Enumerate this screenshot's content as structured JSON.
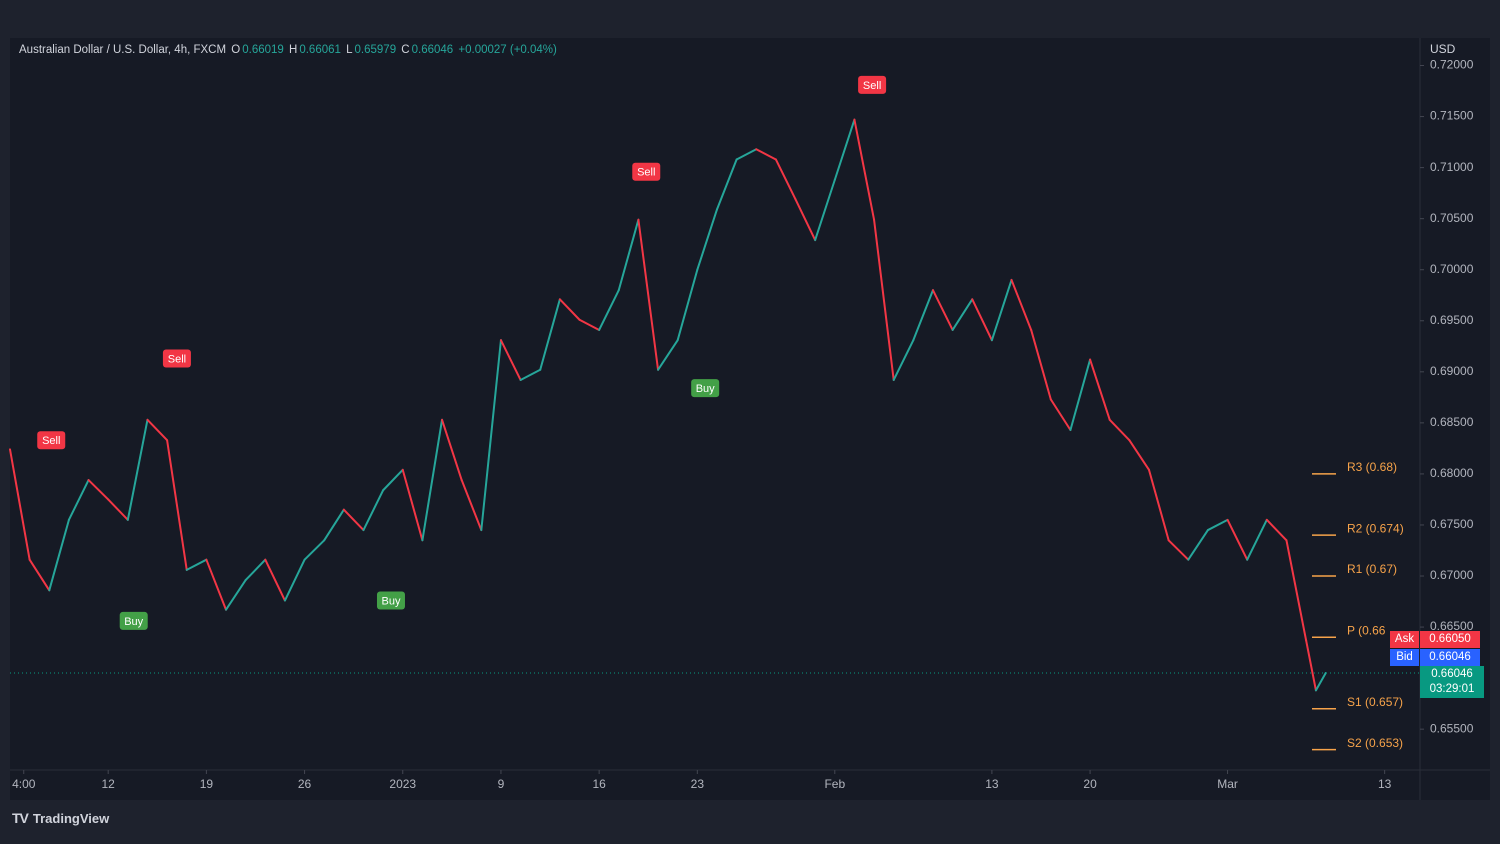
{
  "header": {
    "symbol": "Australian Dollar / U.S. Dollar, 4h, FXCM",
    "open_label": "O",
    "open": "0.66019",
    "high_label": "H",
    "high": "0.66061",
    "low_label": "L",
    "low": "0.65979",
    "close_label": "C",
    "close": "0.66046",
    "change": "+0.00027 (+0.04%)"
  },
  "chart_data": {
    "type": "line",
    "currency": "USD",
    "up_color": "#26a69a",
    "down_color": "#f23645",
    "x": [
      0,
      1,
      2,
      3,
      4,
      5,
      6,
      7,
      8,
      9,
      10,
      11,
      12,
      13,
      14,
      15,
      16,
      17,
      18,
      19,
      20,
      21,
      22,
      23,
      24,
      25,
      26,
      27,
      28,
      29,
      30,
      31,
      32,
      33,
      34,
      35,
      36,
      37,
      38,
      39,
      40,
      41,
      42,
      43,
      44,
      45,
      46,
      47,
      48,
      49,
      50,
      51,
      52,
      53,
      54,
      55,
      56,
      57,
      58,
      59,
      60,
      61,
      62,
      63,
      64,
      65,
      66,
      66.5,
      67
    ],
    "values": [
      0.6824,
      0.6716,
      0.6686,
      0.6755,
      0.6794,
      0.6775,
      0.6755,
      0.6853,
      0.6833,
      0.6706,
      0.6716,
      0.6667,
      0.6696,
      0.6716,
      0.6676,
      0.6716,
      0.6735,
      0.6765,
      0.6745,
      0.6784,
      0.6804,
      0.6735,
      0.6853,
      0.6794,
      0.6745,
      0.6931,
      0.6892,
      0.6902,
      0.6971,
      0.6951,
      0.6941,
      0.698,
      0.7049,
      0.6902,
      0.6931,
      0.7,
      0.7059,
      0.7108,
      0.7118,
      0.7108,
      0.7069,
      0.7029,
      0.7088,
      0.7147,
      0.7049,
      0.6892,
      0.6931,
      0.698,
      0.6941,
      0.6971,
      0.6931,
      0.699,
      0.6941,
      0.6873,
      0.6843,
      0.6912,
      0.6853,
      0.6833,
      0.6804,
      0.6735,
      0.6716,
      0.6745,
      0.6755,
      0.6716,
      0.6755,
      0.6735,
      0.6637,
      0.6588,
      0.6605
    ],
    "xlim": [
      0,
      71.8
    ],
    "ylim": [
      0.651,
      0.7225
    ],
    "xticks": [
      {
        "value": 0.7,
        "label": "4:00"
      },
      {
        "value": 5,
        "label": "12"
      },
      {
        "value": 10,
        "label": "19"
      },
      {
        "value": 15,
        "label": "26"
      },
      {
        "value": 20,
        "label": "2023"
      },
      {
        "value": 25,
        "label": "9"
      },
      {
        "value": 30,
        "label": "16"
      },
      {
        "value": 35,
        "label": "23"
      },
      {
        "value": 42,
        "label": "Feb"
      },
      {
        "value": 50,
        "label": "13"
      },
      {
        "value": 55,
        "label": "20"
      },
      {
        "value": 62,
        "label": "Mar"
      },
      {
        "value": 70,
        "label": "13"
      }
    ],
    "yticks": [
      {
        "value": 0.72,
        "label": "0.72000"
      },
      {
        "value": 0.715,
        "label": "0.71500"
      },
      {
        "value": 0.71,
        "label": "0.71000"
      },
      {
        "value": 0.705,
        "label": "0.70500"
      },
      {
        "value": 0.7,
        "label": "0.70000"
      },
      {
        "value": 0.695,
        "label": "0.69500"
      },
      {
        "value": 0.69,
        "label": "0.69000"
      },
      {
        "value": 0.685,
        "label": "0.68500"
      },
      {
        "value": 0.68,
        "label": "0.68000"
      },
      {
        "value": 0.675,
        "label": "0.67500"
      },
      {
        "value": 0.67,
        "label": "0.67000"
      },
      {
        "value": 0.665,
        "label": "0.66500"
      },
      {
        "value": 0.655,
        "label": "0.65500"
      }
    ],
    "signals": [
      {
        "label": "Sell",
        "x": 2.1,
        "y": 0.6833
      },
      {
        "label": "Sell",
        "x": 8.5,
        "y": 0.6913
      },
      {
        "label": "Sell",
        "x": 32.4,
        "y": 0.7096
      },
      {
        "label": "Sell",
        "x": 43.9,
        "y": 0.7181
      },
      {
        "label": "Buy",
        "x": 6.3,
        "y": 0.6656
      },
      {
        "label": "Buy",
        "x": 19.4,
        "y": 0.6676
      },
      {
        "label": "Buy",
        "x": 35.4,
        "y": 0.6884
      }
    ],
    "pivots": [
      {
        "label": "R3 (0.68)",
        "value": 0.68
      },
      {
        "label": "R2 (0.674)",
        "value": 0.674
      },
      {
        "label": "R1 (0.67)",
        "value": 0.67
      },
      {
        "label": "P (0.66",
        "value": 0.664
      },
      {
        "label": "S1 (0.657)",
        "value": 0.657
      },
      {
        "label": "S2 (0.653)",
        "value": 0.653
      }
    ]
  },
  "quote": {
    "ask_label": "Ask",
    "ask": "0.66050",
    "bid_label": "Bid",
    "bid": "0.66046",
    "last": "0.66046",
    "countdown": "03:29:01"
  },
  "brand": "TradingView"
}
